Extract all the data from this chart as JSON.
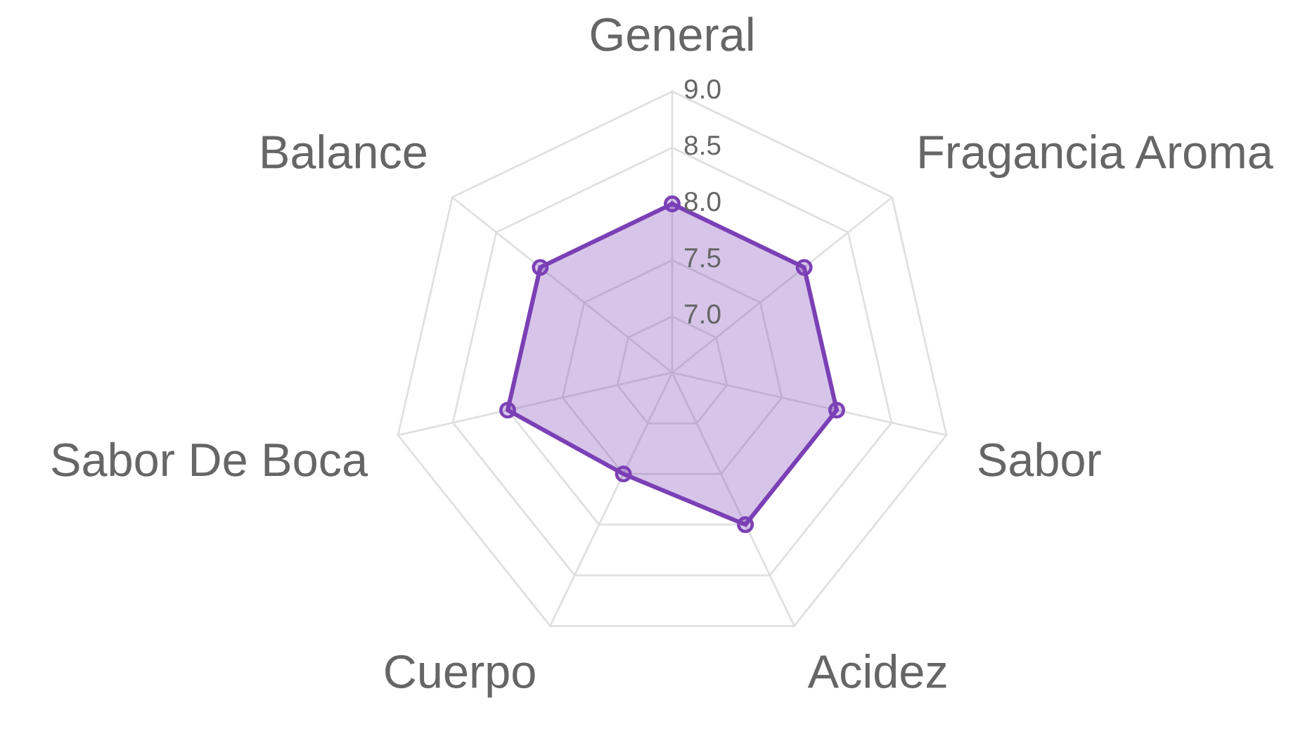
{
  "chart_data": {
    "type": "radar",
    "categories": [
      "General",
      "Fragancia Aroma",
      "Sabor",
      "Acidez",
      "Cuerpo",
      "Sabor De Boca",
      "Balance"
    ],
    "series": [
      {
        "color": "#7b40b5",
        "values": [
          8.0,
          8.0,
          8.0,
          8.0,
          7.5,
          8.0,
          8.0
        ]
      }
    ],
    "ylim": [
      6.5,
      9.0
    ],
    "yticks": [
      {
        "value": 7,
        "label": "7.0"
      },
      7.5,
      {
        "value": 8,
        "label": "8.0"
      },
      8.5,
      {
        "value": 9,
        "label": "9.0"
      }
    ],
    "grid": true,
    "marker": "circle",
    "line_style": "solid"
  }
}
